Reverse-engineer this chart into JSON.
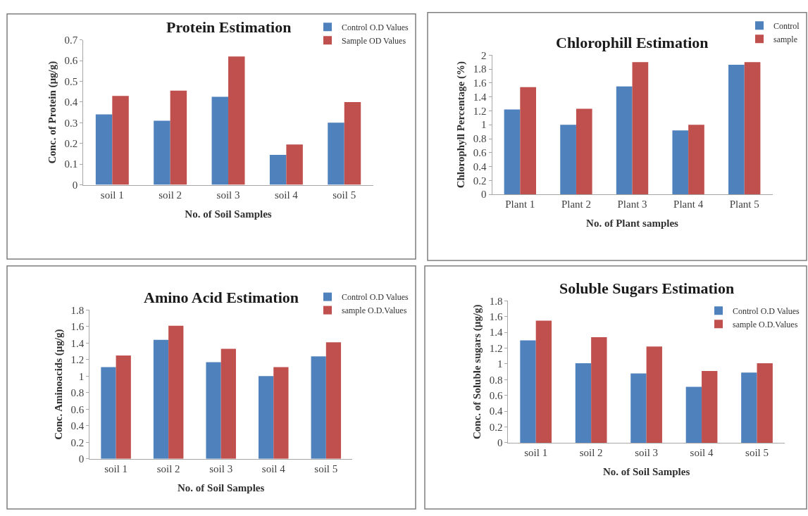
{
  "chart_data": [
    {
      "type": "bar",
      "title": "Protein Estimation",
      "xlabel": "No. of Soil Samples",
      "ylabel": "Conc. of Protein (µg/g)",
      "categories": [
        "soil 1",
        "soil 2",
        "soil 3",
        "soil 4",
        "soil 5"
      ],
      "series": [
        {
          "name": "Control O.D Values",
          "color": "#4f81bd",
          "values": [
            0.34,
            0.31,
            0.425,
            0.145,
            0.3
          ]
        },
        {
          "name": "Sample OD Values",
          "color": "#c0504d",
          "values": [
            0.43,
            0.455,
            0.62,
            0.195,
            0.4
          ]
        }
      ],
      "ylim": [
        0,
        0.7
      ],
      "yticks": [
        0,
        0.1,
        0.2,
        0.3,
        0.4,
        0.5,
        0.6,
        0.7
      ],
      "legend": "top right"
    },
    {
      "type": "bar",
      "title": "Chlorophill Estimation",
      "xlabel": "No. of Plant samples",
      "ylabel": "Chlorophyll Percentage (%)",
      "categories": [
        "Plant 1",
        "Plant 2",
        "Plant 3",
        "Plant 4",
        "Plant 5"
      ],
      "series": [
        {
          "name": "Control",
          "color": "#4f81bd",
          "values": [
            1.22,
            1.0,
            1.55,
            0.92,
            1.86
          ]
        },
        {
          "name": "sample",
          "color": "#c0504d",
          "values": [
            1.54,
            1.23,
            1.9,
            1.0,
            1.9
          ]
        }
      ],
      "ylim": [
        0,
        2
      ],
      "yticks": [
        0,
        0.2,
        0.4,
        0.6,
        0.8,
        1,
        1.2,
        1.4,
        1.6,
        1.8,
        2
      ],
      "legend": "top right"
    },
    {
      "type": "bar",
      "title": "Amino Acid Estimation",
      "xlabel": "No. of Soil Samples",
      "ylabel": "Conc. Aminoacids (µg/g)",
      "categories": [
        "soil 1",
        "soil 2",
        "soil 3",
        "soil 4",
        "soil 5"
      ],
      "series": [
        {
          "name": "Control O.D Values",
          "color": "#4f81bd",
          "values": [
            1.11,
            1.44,
            1.17,
            1.0,
            1.24
          ]
        },
        {
          "name": "sample O.D.Values",
          "color": "#c0504d",
          "values": [
            1.25,
            1.61,
            1.33,
            1.11,
            1.41
          ]
        }
      ],
      "ylim": [
        0,
        1.8
      ],
      "yticks": [
        0,
        0.2,
        0.4,
        0.6,
        0.8,
        1,
        1.2,
        1.4,
        1.6,
        1.8
      ],
      "legend": "top right"
    },
    {
      "type": "bar",
      "title": "Soluble Sugars Estimation",
      "xlabel": "No. of Soil Samples",
      "ylabel": "Conc. of Soluble sugars (µg/g)",
      "categories": [
        "soil 1",
        "soil 2",
        "soil 3",
        "soil 4",
        "soil 5"
      ],
      "series": [
        {
          "name": "Control O.D Values",
          "color": "#4f81bd",
          "values": [
            1.3,
            1.01,
            0.88,
            0.71,
            0.89
          ]
        },
        {
          "name": "sample O.D.Values",
          "color": "#c0504d",
          "values": [
            1.55,
            1.34,
            1.22,
            0.91,
            1.01
          ]
        }
      ],
      "ylim": [
        0,
        1.8
      ],
      "yticks": [
        0,
        0.2,
        0.4,
        0.6,
        0.8,
        1,
        1.2,
        1.4,
        1.6,
        1.8
      ],
      "legend": "top right"
    }
  ]
}
